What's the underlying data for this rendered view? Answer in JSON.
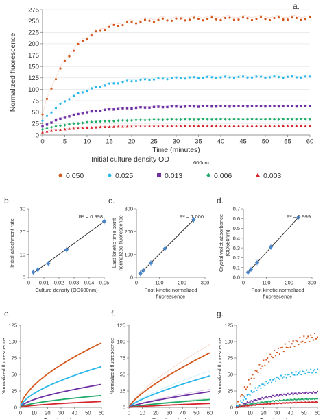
{
  "panels": {
    "a": "a.",
    "b": "b.",
    "c": "c.",
    "d": "d.",
    "e": "e.",
    "f": "f.",
    "g": "g."
  },
  "colors": {
    "s050": "#d4561c",
    "s025": "#27b7e8",
    "s013": "#6e2fa3",
    "s006": "#1faa6a",
    "s003": "#d4242c",
    "fit": "#222222",
    "point": "#4a86c8"
  },
  "chart_data": [
    {
      "id": "a",
      "type": "scatter",
      "xlabel": "Time (minutes)",
      "ylabel": "Normalized fluorescence",
      "xlim": [
        0,
        60
      ],
      "ylim": [
        0,
        275
      ],
      "xticks": [
        0,
        5,
        10,
        15,
        20,
        25,
        30,
        35,
        40,
        45,
        50,
        55,
        60
      ],
      "yticks": [
        0,
        25,
        50,
        75,
        100,
        125,
        150,
        175,
        200,
        225,
        250,
        275
      ],
      "legend_title": "Initial culture density OD",
      "legend_title_sub": "600nm",
      "legend_position": "bottom",
      "series": [
        {
          "name": "0.050",
          "key": "s050",
          "asymptote": 255,
          "rate": 0.16,
          "start": 45
        },
        {
          "name": "0.025",
          "key": "s025",
          "asymptote": 127,
          "rate": 0.12,
          "start": 30
        },
        {
          "name": "0.013",
          "key": "s013",
          "asymptote": 63,
          "rate": 0.12,
          "start": 18
        },
        {
          "name": "0.006",
          "key": "s006",
          "asymptote": 34,
          "rate": 0.12,
          "start": 12
        },
        {
          "name": "0.003",
          "key": "s003",
          "asymptote": 20,
          "rate": 0.12,
          "start": 6
        }
      ]
    },
    {
      "id": "b",
      "type": "scatter",
      "xlabel": "Culture density (OD600nm)",
      "ylabel": "Initial attachment rate",
      "xlim": [
        0,
        0.05
      ],
      "ylim": [
        0,
        30
      ],
      "xticks": [
        0,
        0.01,
        0.02,
        0.03,
        0.04,
        0.05
      ],
      "yticks": [
        0,
        10,
        20,
        30
      ],
      "xtick_labels": [
        "0",
        "0.01",
        "0.02",
        "0.03",
        "0.04",
        "0.05"
      ],
      "r2": "R² = 0.998",
      "points": [
        {
          "x": 0.003,
          "y": 2.2
        },
        {
          "x": 0.006,
          "y": 3.3
        },
        {
          "x": 0.013,
          "y": 6.0
        },
        {
          "x": 0.025,
          "y": 12.1
        },
        {
          "x": 0.05,
          "y": 24.5
        }
      ],
      "fit": {
        "x": [
          0.003,
          0.05
        ],
        "y": [
          1.8,
          24.5
        ]
      }
    },
    {
      "id": "c",
      "type": "scatter",
      "xlabel": "Post kinetic normalized fluorescence",
      "ylabel": "Last kinetic time point normalized fluorescence",
      "xlim": [
        0,
        300
      ],
      "ylim": [
        0,
        300
      ],
      "xticks": [
        0,
        100,
        200,
        300
      ],
      "yticks": [
        0,
        100,
        200,
        300
      ],
      "r2": "R² = 1.000",
      "points": [
        {
          "x": 17,
          "y": 17
        },
        {
          "x": 30,
          "y": 30
        },
        {
          "x": 63,
          "y": 63
        },
        {
          "x": 125,
          "y": 126
        },
        {
          "x": 250,
          "y": 252
        }
      ],
      "fit": {
        "x": [
          17,
          250
        ],
        "y": [
          17,
          252
        ]
      }
    },
    {
      "id": "d",
      "type": "scatter",
      "xlabel": "Post kinetic normalized fluorescence",
      "ylabel": "Crystal violet absorbance (OD550nm)",
      "xlim": [
        0,
        300
      ],
      "ylim": [
        0,
        0.7
      ],
      "xticks": [
        0,
        100,
        200,
        300
      ],
      "yticks": [
        0,
        0.1,
        0.2,
        0.3,
        0.4,
        0.5,
        0.6,
        0.7
      ],
      "ytick_labels": [
        "0.0",
        "0.1",
        "0.2",
        "0.3",
        "0.4",
        "0.5",
        "0.6",
        "0.7"
      ],
      "r2": "R² = 0.999",
      "points": [
        {
          "x": 20,
          "y": 0.05
        },
        {
          "x": 33,
          "y": 0.08
        },
        {
          "x": 60,
          "y": 0.15
        },
        {
          "x": 120,
          "y": 0.31
        },
        {
          "x": 240,
          "y": 0.61
        }
      ],
      "fit": {
        "x": [
          20,
          240
        ],
        "y": [
          0.05,
          0.61
        ]
      }
    },
    {
      "id": "e",
      "type": "line",
      "xlabel": "Time (minutes)",
      "ylabel": "Normalized fluorescence",
      "xlim": [
        0,
        60
      ],
      "ylim": [
        0,
        125
      ],
      "xticks": [
        0,
        10,
        20,
        30,
        40,
        50,
        60
      ],
      "yticks": [
        0,
        25,
        50,
        75,
        100,
        125
      ],
      "series": [
        {
          "name": "0.050",
          "key": "s050",
          "end": 98
        },
        {
          "name": "0.025",
          "key": "s025",
          "end": 62
        },
        {
          "name": "0.013",
          "key": "s013",
          "end": 35
        },
        {
          "name": "0.006",
          "key": "s006",
          "end": 18
        },
        {
          "name": "0.003",
          "key": "s003",
          "end": 9
        }
      ]
    },
    {
      "id": "f",
      "type": "line",
      "xlabel": "Time (minutes)",
      "ylabel": "Normalized fluorescence",
      "xlim": [
        0,
        60
      ],
      "ylim": [
        0,
        125
      ],
      "xticks": [
        0,
        10,
        20,
        30,
        40,
        50,
        60
      ],
      "yticks": [
        0,
        25,
        50,
        75,
        100,
        125
      ],
      "series": [
        {
          "name": "0.050",
          "key": "s050",
          "end": 83
        },
        {
          "name": "0.025",
          "key": "s025",
          "end": 48
        },
        {
          "name": "0.013",
          "key": "s013",
          "end": 24
        },
        {
          "name": "0.006",
          "key": "s006",
          "end": 12
        },
        {
          "name": "0.003",
          "key": "s003",
          "end": 6
        }
      ]
    },
    {
      "id": "g",
      "type": "scatter",
      "xlabel": "Time (minutes)",
      "ylabel": "Normalized fluorescence",
      "xlim": [
        0,
        60
      ],
      "ylim": [
        0,
        125
      ],
      "xticks": [
        0,
        10,
        20,
        30,
        40,
        50,
        60
      ],
      "yticks": [
        0,
        25,
        50,
        75,
        100,
        125
      ],
      "series": [
        {
          "name": "0.050",
          "key": "s050",
          "end": 108
        },
        {
          "name": "0.025",
          "key": "s025",
          "end": 56
        },
        {
          "name": "0.013",
          "key": "s013",
          "end": 23
        },
        {
          "name": "0.006",
          "key": "s006",
          "end": 13
        },
        {
          "name": "0.003",
          "key": "s003",
          "end": 8
        }
      ]
    }
  ]
}
